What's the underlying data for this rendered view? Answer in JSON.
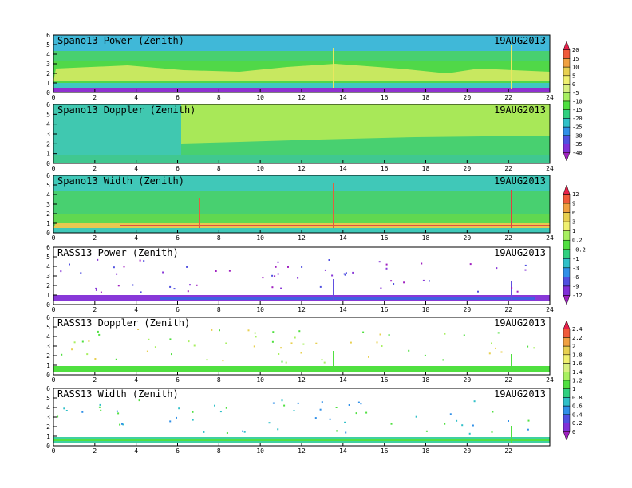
{
  "figure": {
    "date": "19AUG2013"
  },
  "chart_data": [
    {
      "type": "heatmap",
      "title": "Spano13 Power (Zenith)",
      "date": "19AUG2013",
      "xlim": [
        0,
        24
      ],
      "ylim": [
        0,
        6
      ],
      "x_ticks": [
        "0",
        "2",
        "4",
        "6",
        "8",
        "10",
        "12",
        "14",
        "16",
        "18",
        "20",
        "22",
        "24"
      ],
      "y_ticks": [
        "0",
        "1",
        "2",
        "3",
        "4",
        "5",
        "6"
      ],
      "colorbar": "cb1",
      "description_values": {
        "typical_low": -5,
        "typical_mid": -15,
        "near_ground": -40
      }
    },
    {
      "type": "heatmap",
      "title": "Spano13 Doppler (Zenith)",
      "date": "19AUG2013",
      "xlim": [
        0,
        24
      ],
      "ylim": [
        0,
        6
      ],
      "x_ticks": [
        "0",
        "2",
        "4",
        "6",
        "8",
        "10",
        "12",
        "14",
        "16",
        "18",
        "20",
        "22",
        "24"
      ],
      "y_ticks": [
        "0",
        "1",
        "2",
        "3",
        "4",
        "5",
        "6"
      ],
      "colorbar": "cb1"
    },
    {
      "type": "heatmap",
      "title": "Spano13 Width (Zenith)",
      "date": "19AUG2013",
      "xlim": [
        0,
        24
      ],
      "ylim": [
        0,
        6
      ],
      "x_ticks": [
        "0",
        "2",
        "4",
        "6",
        "8",
        "10",
        "12",
        "14",
        "16",
        "18",
        "20",
        "22",
        "24"
      ],
      "y_ticks": [
        "0",
        "1",
        "2",
        "3",
        "4",
        "5",
        "6"
      ],
      "colorbar": "cb2"
    },
    {
      "type": "heatmap",
      "title": "RASS13 Power (Zenith)",
      "date": "19AUG2013",
      "xlim": [
        0,
        24
      ],
      "ylim": [
        0,
        6
      ],
      "x_ticks": [
        "0",
        "2",
        "4",
        "6",
        "8",
        "10",
        "12",
        "14",
        "16",
        "18",
        "20",
        "22",
        "24"
      ],
      "y_ticks": [
        "0",
        "1",
        "2",
        "3",
        "4",
        "5",
        "6"
      ],
      "colorbar": "cb2"
    },
    {
      "type": "heatmap",
      "title": "RASS13 Doppler (Zenith)",
      "date": "19AUG2013",
      "xlim": [
        0,
        24
      ],
      "ylim": [
        0,
        6
      ],
      "x_ticks": [
        "0",
        "2",
        "4",
        "6",
        "8",
        "10",
        "12",
        "14",
        "16",
        "18",
        "20",
        "22",
        "24"
      ],
      "y_ticks": [
        "0",
        "1",
        "2",
        "3",
        "4",
        "5",
        "6"
      ],
      "colorbar": "cb3"
    },
    {
      "type": "heatmap",
      "title": "RASS13 Width (Zenith)",
      "date": "19AUG2013",
      "xlim": [
        0,
        24
      ],
      "ylim": [
        0,
        6
      ],
      "x_ticks": [
        "0",
        "2",
        "4",
        "6",
        "8",
        "10",
        "12",
        "14",
        "16",
        "18",
        "20",
        "22"
      ],
      "y_ticks": [
        "0",
        "1",
        "2",
        "3",
        "4",
        "5",
        "6"
      ],
      "colorbar": "cb3"
    }
  ],
  "colorbars": {
    "cb1": {
      "labels": [
        "20",
        "15",
        "10",
        "5",
        "0",
        "-5",
        "-10",
        "-15",
        "-20",
        "-25",
        "-30",
        "-35",
        "-40"
      ],
      "colors": [
        "#e8204a",
        "#f05a3a",
        "#f0a040",
        "#e8d050",
        "#f0f070",
        "#d8f080",
        "#a8f060",
        "#50e040",
        "#30d080",
        "#30c0c8",
        "#3090e8",
        "#5050e0",
        "#8030d8",
        "#a020c0"
      ]
    },
    "cb2": {
      "labels": [
        "12",
        "9",
        "6",
        "3",
        "1",
        "0.2",
        "-0.2",
        "-1",
        "-3",
        "-6",
        "-9",
        "-12"
      ],
      "colors": [
        "#e8204a",
        "#f05a3a",
        "#f0a040",
        "#e8d050",
        "#f0f070",
        "#a8f060",
        "#50e040",
        "#30d080",
        "#30c0c8",
        "#3090e8",
        "#5050e0",
        "#8030d8",
        "#a020c0"
      ]
    },
    "cb3": {
      "labels": [
        "2.4",
        "2.2",
        "2",
        "1.8",
        "1.6",
        "1.4",
        "1.2",
        "1",
        "0.8",
        "0.6",
        "0.4",
        "0.2",
        "0"
      ],
      "colors": [
        "#e8204a",
        "#f05a3a",
        "#f0a040",
        "#e8d050",
        "#f0f070",
        "#d8f080",
        "#a8f060",
        "#50e040",
        "#30d080",
        "#30c0c8",
        "#3090e8",
        "#5050e0",
        "#8030d8",
        "#a020c0"
      ]
    }
  }
}
